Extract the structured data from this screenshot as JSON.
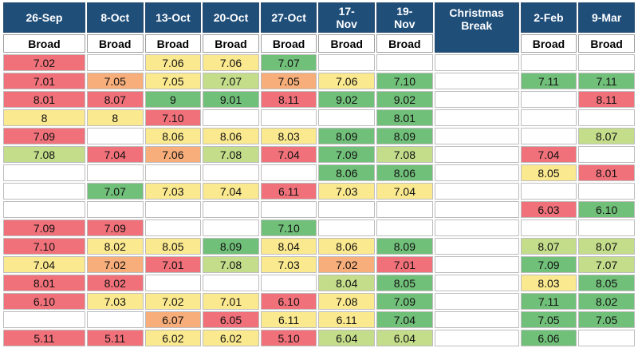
{
  "colors": {
    "R": "#f1717a",
    "O": "#f7ae7a",
    "Y": "#fbe98f",
    "L": "#c4dd8b",
    "G": "#71c07a",
    "W": "#ffffff",
    "header_bg": "#1f4e79"
  },
  "header": {
    "dates": [
      "26-Sep",
      "8-Oct",
      "13-Oct",
      "20-Oct",
      "27-Oct",
      "17-\nNov",
      "19-\nNov",
      "Christmas\nBreak",
      "2-Feb",
      "9-Mar"
    ],
    "sub": [
      "Broad",
      "Broad",
      "Broad",
      "Broad",
      "Broad",
      "Broad",
      "Broad",
      "",
      "Broad",
      "Broad"
    ]
  },
  "rows": [
    [
      {
        "v": "7.02",
        "c": "R"
      },
      {
        "v": "",
        "c": "W"
      },
      {
        "v": "7.06",
        "c": "Y"
      },
      {
        "v": "7.06",
        "c": "Y"
      },
      {
        "v": "7.07",
        "c": "G"
      },
      {
        "v": "",
        "c": "W"
      },
      {
        "v": "",
        "c": "W"
      },
      {
        "v": "",
        "c": "W"
      },
      {
        "v": "",
        "c": "W"
      },
      {
        "v": "",
        "c": "W"
      }
    ],
    [
      {
        "v": "7.01",
        "c": "R"
      },
      {
        "v": "7.05",
        "c": "O"
      },
      {
        "v": "7.05",
        "c": "Y"
      },
      {
        "v": "7.07",
        "c": "L"
      },
      {
        "v": "7.05",
        "c": "O"
      },
      {
        "v": "7.06",
        "c": "Y"
      },
      {
        "v": "7.10",
        "c": "G"
      },
      {
        "v": "",
        "c": "W"
      },
      {
        "v": "7.11",
        "c": "G"
      },
      {
        "v": "7.11",
        "c": "G"
      }
    ],
    [
      {
        "v": "8.01",
        "c": "R"
      },
      {
        "v": "8.07",
        "c": "R"
      },
      {
        "v": "9",
        "c": "G"
      },
      {
        "v": "9.01",
        "c": "G"
      },
      {
        "v": "8.11",
        "c": "R"
      },
      {
        "v": "9.02",
        "c": "G"
      },
      {
        "v": "9.02",
        "c": "G"
      },
      {
        "v": "",
        "c": "W"
      },
      {
        "v": "",
        "c": "W"
      },
      {
        "v": "8.11",
        "c": "R"
      }
    ],
    [
      {
        "v": "8",
        "c": "Y"
      },
      {
        "v": "8",
        "c": "Y"
      },
      {
        "v": "7.10",
        "c": "R"
      },
      {
        "v": "",
        "c": "W"
      },
      {
        "v": "",
        "c": "W"
      },
      {
        "v": "",
        "c": "W"
      },
      {
        "v": "8.01",
        "c": "G"
      },
      {
        "v": "",
        "c": "W"
      },
      {
        "v": "",
        "c": "W"
      },
      {
        "v": "",
        "c": "W"
      }
    ],
    [
      {
        "v": "7.09",
        "c": "R"
      },
      {
        "v": "",
        "c": "W"
      },
      {
        "v": "8.06",
        "c": "Y"
      },
      {
        "v": "8.06",
        "c": "Y"
      },
      {
        "v": "8.03",
        "c": "Y"
      },
      {
        "v": "8.09",
        "c": "G"
      },
      {
        "v": "8.09",
        "c": "G"
      },
      {
        "v": "",
        "c": "W"
      },
      {
        "v": "",
        "c": "W"
      },
      {
        "v": "8.07",
        "c": "L"
      }
    ],
    [
      {
        "v": "7.08",
        "c": "L"
      },
      {
        "v": "7.04",
        "c": "R"
      },
      {
        "v": "7.06",
        "c": "O"
      },
      {
        "v": "7.08",
        "c": "L"
      },
      {
        "v": "7.04",
        "c": "R"
      },
      {
        "v": "7.09",
        "c": "G"
      },
      {
        "v": "7.08",
        "c": "L"
      },
      {
        "v": "",
        "c": "W"
      },
      {
        "v": "7.04",
        "c": "R"
      },
      {
        "v": "",
        "c": "W"
      }
    ],
    [
      {
        "v": "",
        "c": "W"
      },
      {
        "v": "",
        "c": "W"
      },
      {
        "v": "",
        "c": "W"
      },
      {
        "v": "",
        "c": "W"
      },
      {
        "v": "",
        "c": "W"
      },
      {
        "v": "8.06",
        "c": "G"
      },
      {
        "v": "8.06",
        "c": "G"
      },
      {
        "v": "",
        "c": "W"
      },
      {
        "v": "8.05",
        "c": "Y"
      },
      {
        "v": "8.01",
        "c": "R"
      }
    ],
    [
      {
        "v": "",
        "c": "W"
      },
      {
        "v": "7.07",
        "c": "G"
      },
      {
        "v": "7.03",
        "c": "Y"
      },
      {
        "v": "7.04",
        "c": "Y"
      },
      {
        "v": "6.11",
        "c": "R"
      },
      {
        "v": "7.03",
        "c": "Y"
      },
      {
        "v": "7.04",
        "c": "Y"
      },
      {
        "v": "",
        "c": "W"
      },
      {
        "v": "",
        "c": "W"
      },
      {
        "v": "",
        "c": "W"
      }
    ],
    [
      {
        "v": "",
        "c": "W"
      },
      {
        "v": "",
        "c": "W"
      },
      {
        "v": "",
        "c": "W"
      },
      {
        "v": "",
        "c": "W"
      },
      {
        "v": "",
        "c": "W"
      },
      {
        "v": "",
        "c": "W"
      },
      {
        "v": "",
        "c": "W"
      },
      {
        "v": "",
        "c": "W"
      },
      {
        "v": "6.03",
        "c": "R"
      },
      {
        "v": "6.10",
        "c": "G"
      }
    ],
    [
      {
        "v": "7.09",
        "c": "R"
      },
      {
        "v": "7.09",
        "c": "R"
      },
      {
        "v": "",
        "c": "W"
      },
      {
        "v": "",
        "c": "W"
      },
      {
        "v": "7.10",
        "c": "G"
      },
      {
        "v": "",
        "c": "W"
      },
      {
        "v": "",
        "c": "W"
      },
      {
        "v": "",
        "c": "W"
      },
      {
        "v": "",
        "c": "W"
      },
      {
        "v": "",
        "c": "W"
      }
    ],
    [
      {
        "v": "7.10",
        "c": "R"
      },
      {
        "v": "8.02",
        "c": "Y"
      },
      {
        "v": "8.05",
        "c": "Y"
      },
      {
        "v": "8.09",
        "c": "G"
      },
      {
        "v": "8.04",
        "c": "Y"
      },
      {
        "v": "8.06",
        "c": "Y"
      },
      {
        "v": "8.09",
        "c": "G"
      },
      {
        "v": "",
        "c": "W"
      },
      {
        "v": "8.07",
        "c": "L"
      },
      {
        "v": "8.07",
        "c": "L"
      }
    ],
    [
      {
        "v": "7.04",
        "c": "Y"
      },
      {
        "v": "7.02",
        "c": "O"
      },
      {
        "v": "7.01",
        "c": "R"
      },
      {
        "v": "7.08",
        "c": "L"
      },
      {
        "v": "7.03",
        "c": "Y"
      },
      {
        "v": "7.02",
        "c": "O"
      },
      {
        "v": "7.01",
        "c": "R"
      },
      {
        "v": "",
        "c": "W"
      },
      {
        "v": "7.09",
        "c": "G"
      },
      {
        "v": "7.07",
        "c": "L"
      }
    ],
    [
      {
        "v": "8.01",
        "c": "R"
      },
      {
        "v": "8.02",
        "c": "R"
      },
      {
        "v": "",
        "c": "W"
      },
      {
        "v": "",
        "c": "W"
      },
      {
        "v": "",
        "c": "W"
      },
      {
        "v": "8.04",
        "c": "L"
      },
      {
        "v": "8.05",
        "c": "G"
      },
      {
        "v": "",
        "c": "W"
      },
      {
        "v": "8.03",
        "c": "Y"
      },
      {
        "v": "8.05",
        "c": "G"
      }
    ],
    [
      {
        "v": "6.10",
        "c": "R"
      },
      {
        "v": "7.03",
        "c": "Y"
      },
      {
        "v": "7.02",
        "c": "Y"
      },
      {
        "v": "7.01",
        "c": "Y"
      },
      {
        "v": "6.10",
        "c": "R"
      },
      {
        "v": "7.08",
        "c": "Y"
      },
      {
        "v": "7.09",
        "c": "G"
      },
      {
        "v": "",
        "c": "W"
      },
      {
        "v": "7.11",
        "c": "G"
      },
      {
        "v": "8.02",
        "c": "G"
      }
    ],
    [
      {
        "v": "",
        "c": "W"
      },
      {
        "v": "",
        "c": "W"
      },
      {
        "v": "6.07",
        "c": "O"
      },
      {
        "v": "6.05",
        "c": "R"
      },
      {
        "v": "6.11",
        "c": "Y"
      },
      {
        "v": "6.11",
        "c": "Y"
      },
      {
        "v": "7.04",
        "c": "G"
      },
      {
        "v": "",
        "c": "W"
      },
      {
        "v": "7.05",
        "c": "G"
      },
      {
        "v": "7.05",
        "c": "G"
      }
    ],
    [
      {
        "v": "5.11",
        "c": "R"
      },
      {
        "v": "5.11",
        "c": "R"
      },
      {
        "v": "6.02",
        "c": "Y"
      },
      {
        "v": "6.02",
        "c": "Y"
      },
      {
        "v": "5.10",
        "c": "R"
      },
      {
        "v": "6.04",
        "c": "L"
      },
      {
        "v": "6.04",
        "c": "L"
      },
      {
        "v": "",
        "c": "W"
      },
      {
        "v": "6.06",
        "c": "G"
      },
      {
        "v": "",
        "c": "W"
      }
    ]
  ]
}
